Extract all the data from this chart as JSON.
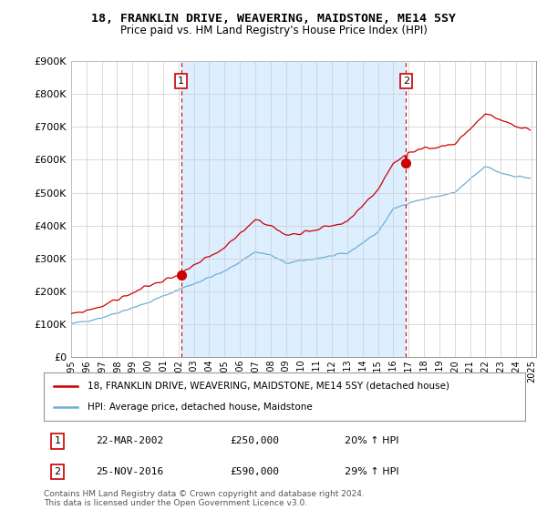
{
  "title": "18, FRANKLIN DRIVE, WEAVERING, MAIDSTONE, ME14 5SY",
  "subtitle": "Price paid vs. HM Land Registry's House Price Index (HPI)",
  "sale1_date": "22-MAR-2002",
  "sale1_price": 250000,
  "sale1_pct": "20%",
  "sale2_date": "25-NOV-2016",
  "sale2_price": 590000,
  "sale2_pct": "29%",
  "legend_line1": "18, FRANKLIN DRIVE, WEAVERING, MAIDSTONE, ME14 5SY (detached house)",
  "legend_line2": "HPI: Average price, detached house, Maidstone",
  "footer": "Contains HM Land Registry data © Crown copyright and database right 2024.\nThis data is licensed under the Open Government Licence v3.0.",
  "hpi_color": "#6baed6",
  "price_color": "#cc0000",
  "vline_color": "#cc0000",
  "shade_color": "#ddeeff",
  "background_color": "#ffffff",
  "grid_color": "#cccccc",
  "ylim_min": 0,
  "ylim_max": 900000,
  "ytick_step": 100000,
  "x_start_year": 1995,
  "x_end_year": 2025
}
